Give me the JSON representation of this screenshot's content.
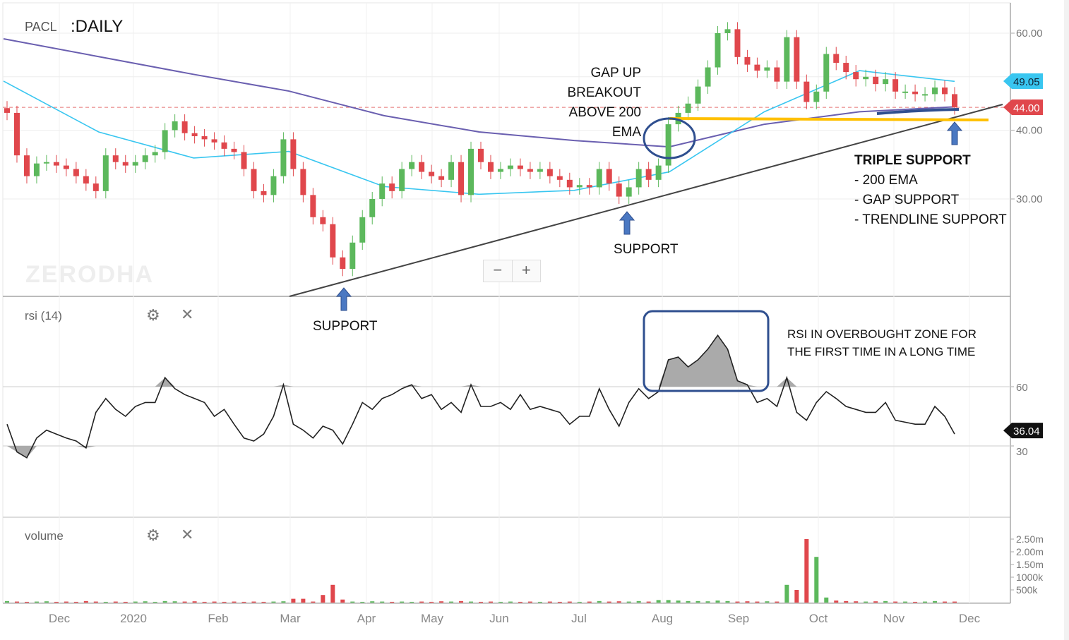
{
  "header": {
    "symbol": "PACL",
    "interval": ":DAILY"
  },
  "watermark": "ZERODHA",
  "zoom_controls": {
    "minus": "−",
    "plus": "+"
  },
  "rsi_panel": {
    "title": "rsi (14)",
    "settings_icon": "gear-icon",
    "close_icon": "close-icon"
  },
  "volume_panel": {
    "title": "volume",
    "settings_icon": "gear-icon",
    "close_icon": "close-icon"
  },
  "annotations": {
    "gap_up": [
      "GAP UP",
      "BREAKOUT",
      "ABOVE 200",
      "EMA"
    ],
    "support_1": "SUPPORT",
    "support_2": "SUPPORT",
    "triple_title": "TRIPLE SUPPORT",
    "triple_items": [
      "- 200 EMA",
      "- GAP SUPPORT",
      "- TRENDLINE SUPPORT"
    ],
    "rsi_note": [
      "RSI IN OVERBOUGHT ZONE FOR",
      "THE FIRST TIME IN A LONG TIME"
    ]
  },
  "colors": {
    "up": "#5cb85c",
    "down": "#e0474c",
    "ema_long": "#6a5fb0",
    "ema_short": "#39c6f0",
    "rsi": "#222222",
    "annotation_yellow": "#ffc000",
    "annotation_blue": "#2f4f8f"
  },
  "chart_data": [
    {
      "type": "candlestick",
      "title": "PACL",
      "y_scale": "log",
      "ylim": [
        20,
        63
      ],
      "y_ticks": [
        "60.00",
        "40.00",
        "30.00"
      ],
      "x_ticks": [
        "Dec",
        "2020",
        "Feb",
        "Mar",
        "Apr",
        "May",
        "Jun",
        "Jul",
        "Aug",
        "Sep",
        "Oct",
        "Nov",
        "Dec"
      ],
      "close": [
        43,
        36,
        33,
        34.8,
        35,
        34.5,
        34,
        33,
        32,
        31,
        36,
        35,
        34.5,
        35,
        36,
        36.5,
        40,
        41.5,
        39.5,
        39,
        38.5,
        38,
        37,
        36.5,
        34,
        31,
        30.5,
        33,
        38.5,
        34,
        30.5,
        27.8,
        27,
        23.5,
        22.4,
        25,
        27.8,
        30,
        32,
        31,
        34,
        35,
        33.6,
        33,
        32.5,
        35,
        30.5,
        37,
        35,
        33.6,
        34,
        34.5,
        34,
        33.6,
        34,
        33,
        32.5,
        31.5,
        31.8,
        31.5,
        34,
        32,
        30.3,
        31.5,
        34,
        32.5,
        34.5,
        41,
        43,
        44.7,
        48,
        52,
        60,
        61,
        54.3,
        52.6,
        51.3,
        52,
        49,
        59,
        49,
        45,
        47,
        55,
        53,
        51,
        49.5,
        50,
        48.5,
        49.5,
        47,
        47,
        46.5,
        46.5,
        47.8,
        46.5,
        44
      ],
      "ema_long": [
        58.6,
        54.4,
        50.5,
        47.1,
        42.5,
        39.7,
        38.3,
        37.3,
        41,
        43.2,
        44.1
      ],
      "ema_short": [
        49.1,
        39.7,
        35.6,
        36.6,
        31.6,
        30.6,
        31.1,
        33.6,
        43.2,
        51.3,
        49.05
      ],
      "last_price": "44.00",
      "ema_short_last": "49.05",
      "reference_line": 44
    },
    {
      "type": "line",
      "title": "rsi (14)",
      "ylim": [
        0,
        100
      ],
      "y_ticks": [
        "60",
        "30"
      ],
      "bands": [
        30,
        60
      ],
      "values": [
        41,
        27,
        24,
        34,
        38,
        36,
        34,
        32.5,
        29,
        47,
        54,
        48.5,
        45,
        50,
        52,
        52,
        64.6,
        59,
        56,
        54,
        52,
        45,
        48.5,
        41,
        34,
        32.5,
        36,
        45,
        61,
        41,
        38,
        34,
        40,
        38,
        31,
        41,
        52,
        48.5,
        54,
        56,
        59,
        61,
        54,
        56,
        48.5,
        52,
        47,
        61,
        50,
        50,
        52,
        48.5,
        56,
        48.5,
        50,
        48.5,
        47,
        41,
        45,
        45,
        59,
        48.5,
        40,
        52,
        59,
        54,
        57.5,
        73.6,
        75,
        70,
        73.6,
        79,
        86,
        79,
        63,
        61,
        52,
        54,
        50,
        64.6,
        47,
        43,
        52,
        57.5,
        54,
        50,
        48.5,
        47,
        47,
        52,
        43,
        42,
        41,
        41,
        50,
        45,
        36.04
      ],
      "last_value": "36.04"
    },
    {
      "type": "bar",
      "title": "volume",
      "y_ticks": [
        "2.50m",
        "2.00m",
        "1.50m",
        "1000k",
        "500k"
      ],
      "unit": "thousands",
      "values": [
        60,
        40,
        30,
        40,
        50,
        30,
        40,
        30,
        60,
        40,
        30,
        40,
        30,
        40,
        50,
        30,
        60,
        50,
        40,
        50,
        30,
        40,
        30,
        40,
        30,
        40,
        30,
        40,
        50,
        150,
        150,
        40,
        300,
        700,
        120,
        40,
        30,
        50,
        40,
        30,
        40,
        30,
        40,
        30,
        50,
        40,
        60,
        40,
        30,
        40,
        30,
        40,
        30,
        40,
        30,
        40,
        30,
        40,
        30,
        40,
        60,
        40,
        50,
        40,
        60,
        40,
        100,
        100,
        80,
        60,
        60,
        50,
        80,
        60,
        40,
        50,
        40,
        50,
        40,
        700,
        500,
        2500,
        1800,
        200,
        80,
        60,
        50,
        40,
        50,
        60,
        40,
        40,
        30,
        40,
        60,
        40,
        40
      ]
    }
  ]
}
